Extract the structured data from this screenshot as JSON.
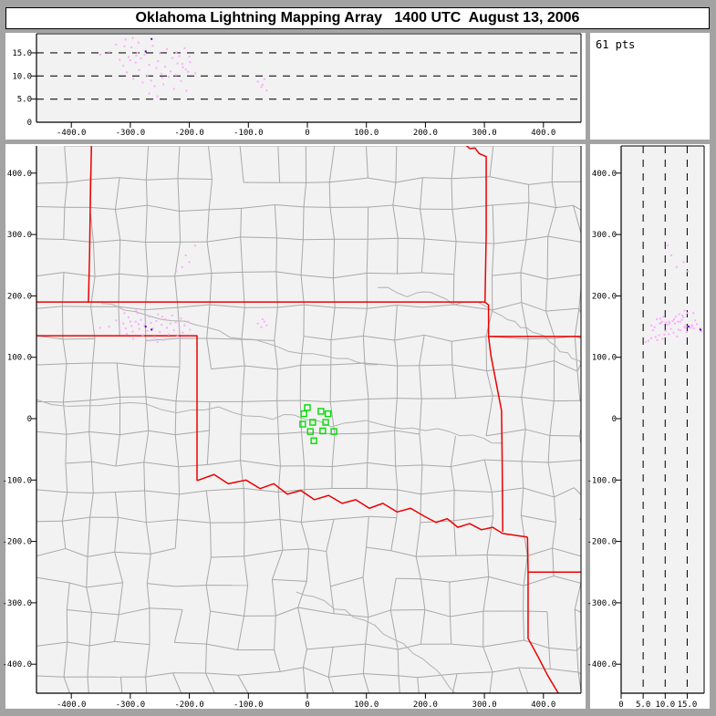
{
  "title": "Oklahoma Lightning Mapping Array   1400 UTC  August 13, 2006",
  "points_count_label": "61 pts",
  "colors": {
    "background": "#a3a3a3",
    "panel": "#ffffff",
    "plot_bg": "#f2f2f2",
    "frame": "#000000",
    "grid_dash": "#111111",
    "county": "#a8a8a8",
    "river": "#b2b2b2",
    "state_border": "#ee0000",
    "station": "#00dd00",
    "source_point": "#ffaaff",
    "source_point_dark": "#5500aa"
  },
  "axes": {
    "ew": {
      "values": [
        -400,
        -300,
        -200,
        -100,
        0,
        100,
        200,
        300,
        400
      ],
      "labels": [
        "-400.0",
        "-300.0",
        "-200.0",
        "-100.0",
        "0",
        "100.0",
        "200.0",
        "300.0",
        "400.0"
      ]
    },
    "ns": {
      "values": [
        400,
        300,
        200,
        100,
        0,
        -100,
        -200,
        -300,
        -400
      ],
      "labels": [
        "400.0",
        "300.0",
        "200.0",
        "100.0",
        "0",
        "-100.0",
        "-200.0",
        "-300.0",
        "-400.0"
      ]
    },
    "alt": {
      "values": [
        5,
        10,
        15
      ],
      "labels": [
        "5.0",
        "10.0",
        "15.0"
      ],
      "zero_label": "0"
    }
  },
  "stations": [
    [
      0,
      18
    ],
    [
      23,
      12
    ],
    [
      35,
      8
    ],
    [
      -6,
      8
    ],
    [
      9,
      -6
    ],
    [
      31,
      -6
    ],
    [
      -8,
      -9
    ],
    [
      5,
      -21
    ],
    [
      26,
      -20
    ],
    [
      45,
      -21
    ],
    [
      11,
      -36
    ]
  ],
  "state_borders": [
    [
      [
        -366,
        444
      ],
      [
        -368,
        340
      ],
      [
        -369,
        270
      ],
      [
        -371,
        190
      ]
    ],
    [
      [
        -462,
        190
      ],
      [
        301,
        190
      ]
    ],
    [
      [
        267,
        447
      ],
      [
        275,
        440
      ],
      [
        284,
        441
      ],
      [
        291,
        432
      ],
      [
        303,
        427
      ],
      [
        303,
        300
      ],
      [
        301,
        190
      ]
    ],
    [
      [
        301,
        190
      ],
      [
        307,
        185
      ],
      [
        307,
        134
      ]
    ],
    [
      [
        307,
        134
      ],
      [
        464,
        134
      ]
    ],
    [
      [
        307,
        134
      ],
      [
        311,
        103
      ],
      [
        329,
        13
      ],
      [
        330,
        -60
      ],
      [
        331,
        -184
      ]
    ],
    [
      [
        -462,
        135
      ],
      [
        -187,
        135
      ],
      [
        -187,
        -101
      ]
    ],
    [
      [
        -187,
        -101
      ],
      [
        -158,
        -91
      ],
      [
        -134,
        -106
      ],
      [
        -104,
        -100
      ],
      [
        -80,
        -114
      ],
      [
        -57,
        -106
      ],
      [
        -34,
        -123
      ],
      [
        -11,
        -117
      ],
      [
        12,
        -132
      ],
      [
        36,
        -125
      ],
      [
        59,
        -138
      ],
      [
        82,
        -132
      ],
      [
        105,
        -146
      ],
      [
        128,
        -138
      ],
      [
        152,
        -152
      ],
      [
        175,
        -146
      ],
      [
        198,
        -159
      ],
      [
        218,
        -169
      ],
      [
        237,
        -163
      ],
      [
        255,
        -177
      ],
      [
        275,
        -171
      ],
      [
        295,
        -181
      ],
      [
        314,
        -177
      ],
      [
        331,
        -187
      ],
      [
        352,
        -190
      ],
      [
        373,
        -193
      ]
    ],
    [
      [
        373,
        -193
      ],
      [
        374,
        -250
      ],
      [
        374,
        -358
      ],
      [
        391,
        -388
      ],
      [
        407,
        -418
      ],
      [
        425,
        -447
      ]
    ],
    [
      [
        374,
        -250
      ],
      [
        468,
        -250
      ]
    ]
  ],
  "lightning_points": [
    [
      -336,
      150,
      15.2
    ],
    [
      -324,
      160,
      16.8
    ],
    [
      -318,
      144,
      13.5
    ],
    [
      -312,
      155,
      12.2
    ],
    [
      -306,
      138,
      10.8
    ],
    [
      -303,
      165,
      14.1
    ],
    [
      -298,
      151,
      16.2
    ],
    [
      -295,
      130,
      9.4
    ],
    [
      -291,
      158,
      12.9
    ],
    [
      -288,
      172,
      15.0
    ],
    [
      -285,
      146,
      11.3
    ],
    [
      -282,
      161,
      13.8
    ],
    [
      -279,
      136,
      8.6
    ],
    [
      -276,
      152,
      14.6
    ],
    [
      -271,
      143,
      10.1
    ],
    [
      -268,
      166,
      12.4
    ],
    [
      -265,
      156,
      9.0
    ],
    [
      -262,
      147,
      16.5
    ],
    [
      -259,
      133,
      7.8
    ],
    [
      -256,
      159,
      11.7
    ],
    [
      -253,
      170,
      13.2
    ],
    [
      -250,
      141,
      14.9
    ],
    [
      -247,
      153,
      10.5
    ],
    [
      -244,
      128,
      8.2
    ],
    [
      -241,
      162,
      12.0
    ],
    [
      -238,
      148,
      15.8
    ],
    [
      -235,
      137,
      9.8
    ],
    [
      -232,
      155,
      11.0
    ],
    [
      -229,
      168,
      13.9
    ],
    [
      -226,
      144,
      7.2
    ],
    [
      -223,
      157,
      10.2
    ],
    [
      -220,
      134,
      12.7
    ],
    [
      -217,
      149,
      14.3
    ],
    [
      -214,
      163,
      8.9
    ],
    [
      -211,
      140,
      11.9
    ],
    [
      -208,
      152,
      16.0
    ],
    [
      -205,
      131,
      6.8
    ],
    [
      -202,
      158,
      10.9
    ],
    [
      -199,
      145,
      13.0
    ],
    [
      -351,
      148,
      14.6
    ],
    [
      -308,
      147,
      17.9
    ],
    [
      -296,
      142,
      18.2
    ],
    [
      -286,
      154,
      17.2
    ],
    [
      -268,
      127,
      6.2
    ],
    [
      -254,
      125,
      5.6
    ],
    [
      -310,
      172,
      16.4
    ],
    [
      -290,
      176,
      14.4
    ],
    [
      -84,
      155,
      8.8
    ],
    [
      -78,
      149,
      7.6
    ],
    [
      -73,
      158,
      9.3
    ],
    [
      -69,
      152,
      6.9
    ],
    [
      -76,
      162,
      8.1
    ],
    [
      -212,
      247,
      12.6
    ],
    [
      -200,
      255,
      14.2
    ],
    [
      -190,
      282,
      10.6
    ],
    [
      -222,
      240,
      15.1
    ],
    [
      -206,
      266,
      11.4
    ],
    [
      -246,
      166,
      9.6
    ],
    [
      -300,
      158,
      13.4
    ]
  ],
  "lightning_dark_points": [
    [
      -274,
      150,
      15.3
    ],
    [
      -264,
      145,
      18.0
    ]
  ]
}
